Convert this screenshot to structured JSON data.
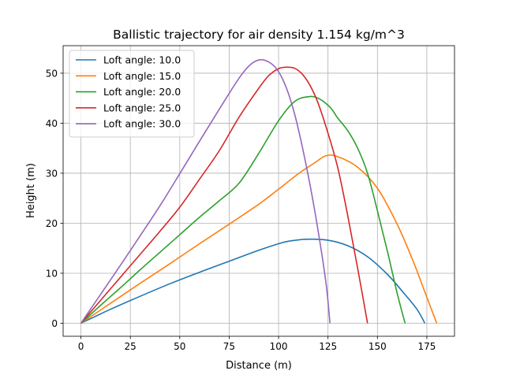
{
  "chart_data": {
    "type": "line",
    "title": "Ballistic trajectory for air density 1.154 kg/m^3",
    "xlabel": "Distance (m)",
    "ylabel": "Height (m)",
    "xlim": [
      -9,
      189
    ],
    "ylim": [
      -2.6,
      55.5
    ],
    "xticks": [
      0,
      25,
      50,
      75,
      100,
      125,
      150,
      175
    ],
    "yticks": [
      0,
      10,
      20,
      30,
      40,
      50
    ],
    "grid": true,
    "legend_position": "upper-left",
    "series": [
      {
        "name": "Loft angle: 10.0",
        "color": "#1f77b4",
        "x": [
          0,
          15,
          30,
          45,
          60,
          75,
          90,
          100,
          105,
          114,
          125,
          135,
          145,
          155,
          163,
          170,
          174
        ],
        "y": [
          0,
          2.8,
          5.4,
          7.9,
          10.2,
          12.4,
          14.6,
          15.9,
          16.4,
          16.8,
          16.6,
          15.5,
          13.3,
          9.8,
          6.2,
          2.8,
          0
        ]
      },
      {
        "name": "Loft angle: 15.0",
        "color": "#ff7f0e",
        "x": [
          0,
          15,
          30,
          45,
          60,
          75,
          90,
          100,
          110,
          118,
          124,
          130,
          140,
          150,
          160,
          168,
          175,
          180
        ],
        "y": [
          0,
          4.0,
          8.0,
          11.9,
          15.9,
          19.8,
          23.8,
          26.8,
          29.9,
          32.0,
          33.5,
          33.3,
          31.2,
          27.0,
          19.8,
          12.5,
          5.2,
          0
        ]
      },
      {
        "name": "Loft angle: 20.0",
        "color": "#2ca02c",
        "x": [
          0,
          10,
          20,
          30,
          40,
          50,
          60,
          70,
          80,
          90,
          100,
          108,
          115,
          120,
          126,
          130,
          135,
          140,
          145,
          150,
          155,
          160,
          164
        ],
        "y": [
          0,
          3.6,
          7.1,
          10.7,
          14.2,
          17.7,
          21.2,
          24.5,
          28.0,
          34.0,
          40.5,
          44.3,
          45.3,
          45.0,
          43.2,
          41.0,
          38.5,
          35.0,
          30.0,
          22.5,
          14.5,
          6.0,
          0
        ]
      },
      {
        "name": "Loft angle: 25.0",
        "color": "#d62728",
        "x": [
          0,
          10,
          20,
          30,
          40,
          50,
          60,
          70,
          80,
          90,
          95,
          100,
          104,
          108,
          112,
          116,
          120,
          125,
          130,
          135,
          140,
          145
        ],
        "y": [
          0,
          4.6,
          9.2,
          13.8,
          18.4,
          23.2,
          28.8,
          34.5,
          41.2,
          47.0,
          49.5,
          50.9,
          51.2,
          51.0,
          49.8,
          47.5,
          44.0,
          38.0,
          31.0,
          21.5,
          11.0,
          0
        ]
      },
      {
        "name": "Loft angle: 30.0",
        "color": "#9467bd",
        "x": [
          0,
          10,
          20,
          30,
          40,
          50,
          60,
          70,
          80,
          86,
          91,
          96,
          100,
          104,
          108,
          112,
          116,
          120,
          124,
          126
        ],
        "y": [
          0,
          5.8,
          11.6,
          17.5,
          23.5,
          29.9,
          36.4,
          42.8,
          49.0,
          51.8,
          52.7,
          52.0,
          50.3,
          47.0,
          42.0,
          35.3,
          27.5,
          18.5,
          8.0,
          0
        ]
      }
    ]
  }
}
